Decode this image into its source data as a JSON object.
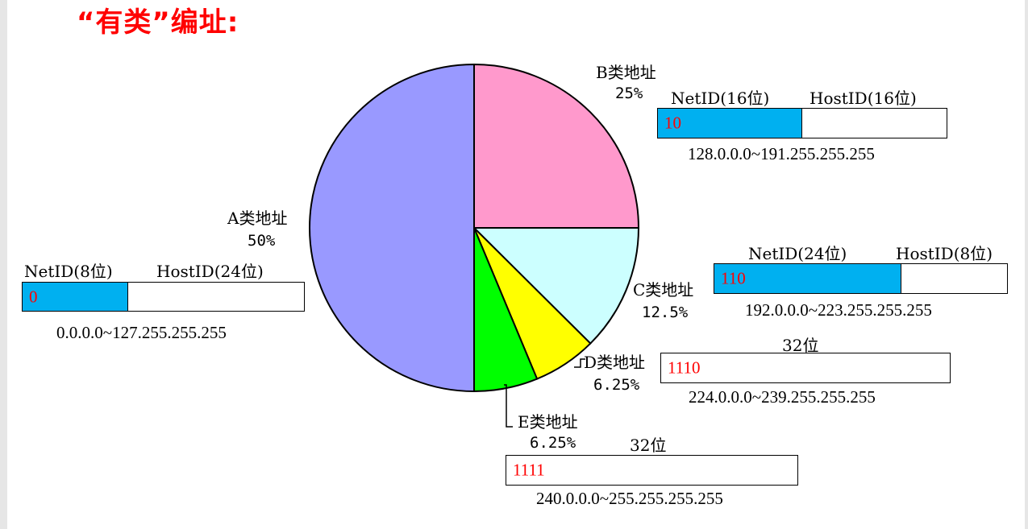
{
  "title": "“有类”编址:",
  "chart_data": {
    "type": "pie",
    "slices": [
      {
        "label": "B类地址",
        "percent_text": "25%",
        "value": 25,
        "color": "#ff99cc"
      },
      {
        "label": "C类地址",
        "percent_text": "12.5%",
        "value": 12.5,
        "color": "#ccffff"
      },
      {
        "label": "D类地址",
        "percent_text": "6.25%",
        "value": 6.25,
        "color": "#ffff00"
      },
      {
        "label": "E类地址",
        "percent_text": "6.25%",
        "value": 6.25,
        "color": "#00ff00"
      },
      {
        "label": "A类地址",
        "percent_text": "50%",
        "value": 50,
        "color": "#9999ff"
      }
    ]
  },
  "classA": {
    "net_label": "NetID(8位)",
    "host_label": "HostID(24位)",
    "prefix": "0",
    "range": "0.0.0.0~127.255.255.255",
    "net_fraction": 0.375
  },
  "classB": {
    "net_label": "NetID(16位)",
    "host_label": "HostID(16位)",
    "prefix": "10",
    "range": "128.0.0.0~191.255.255.255",
    "net_fraction": 0.5
  },
  "classC": {
    "net_label": "NetID(24位)",
    "host_label": "HostID(8位)",
    "prefix": "110",
    "range": "192.0.0.0~223.255.255.255",
    "net_fraction": 0.64
  },
  "classD": {
    "bits_label": "32位",
    "prefix": "1110",
    "range": "224.0.0.0~239.255.255.255"
  },
  "classE": {
    "bits_label": "32位",
    "prefix": "1111",
    "range": "240.0.0.0~255.255.255.255"
  },
  "colors": {
    "netid": "#00b0f0",
    "prefix_text": "#ff0000",
    "title": "#ff0000"
  }
}
